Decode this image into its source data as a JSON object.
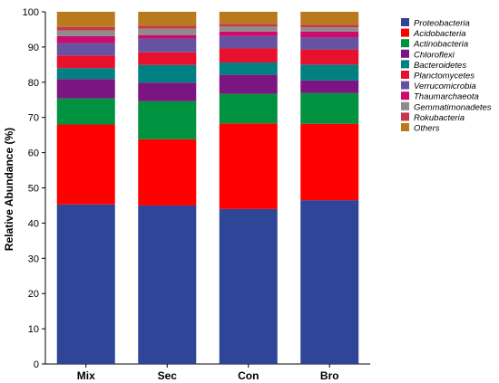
{
  "chart_data": {
    "type": "bar",
    "stacked": true,
    "categories": [
      "Mix",
      "Sec",
      "Con",
      "Bro"
    ],
    "ylabel": "Relative Abundance (%)",
    "xlabel": "",
    "ylim": [
      0,
      100
    ],
    "yticks": [
      0,
      10,
      20,
      30,
      40,
      50,
      60,
      70,
      80,
      90,
      100
    ],
    "legend_position": "right",
    "series": [
      {
        "name": "Proteobacteria",
        "color": "#2e4598",
        "values": [
          45.3,
          45.0,
          44.0,
          46.5
        ]
      },
      {
        "name": "Acidobacteria",
        "color": "#ff0000",
        "values": [
          22.7,
          18.8,
          24.3,
          21.7
        ]
      },
      {
        "name": "Actinobacteria",
        "color": "#00923f",
        "values": [
          7.4,
          10.8,
          8.4,
          8.7
        ]
      },
      {
        "name": "Chloroflexi",
        "color": "#7b1582",
        "values": [
          5.5,
          5.3,
          5.4,
          3.6
        ]
      },
      {
        "name": "Bacteroidetes",
        "color": "#008080",
        "values": [
          3.1,
          5.0,
          3.5,
          4.5
        ]
      },
      {
        "name": "Planctomycetes",
        "color": "#e8112d",
        "values": [
          3.6,
          3.6,
          4.0,
          4.3
        ]
      },
      {
        "name": "Verrucomicrobia",
        "color": "#6652a0",
        "values": [
          3.5,
          3.9,
          3.5,
          3.4
        ]
      },
      {
        "name": "Thaumarchaeota",
        "color": "#cc0c6d",
        "values": [
          2.0,
          1.0,
          1.3,
          1.7
        ]
      },
      {
        "name": "Gemmatimonadetes",
        "color": "#8c8c8c",
        "values": [
          1.6,
          1.8,
          1.4,
          1.2
        ]
      },
      {
        "name": "Rokubacteria",
        "color": "#c8364b",
        "values": [
          1.0,
          0.8,
          0.7,
          0.7
        ]
      },
      {
        "name": "Others",
        "color": "#b87a1c",
        "values": [
          4.3,
          4.0,
          3.5,
          3.7
        ]
      }
    ]
  }
}
